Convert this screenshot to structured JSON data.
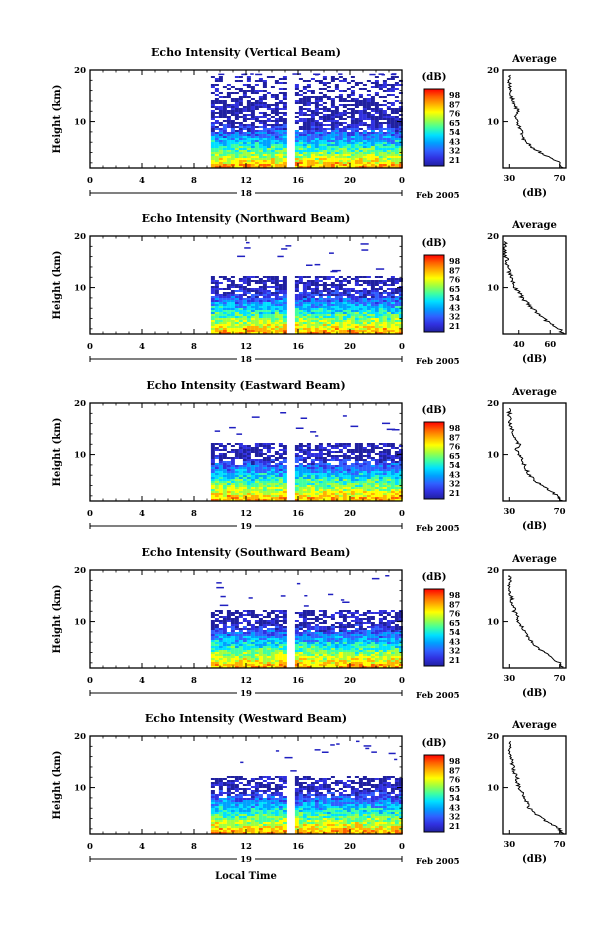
{
  "figure": {
    "xlabel": "Local Time",
    "colorbar_unit": "(dB)",
    "colorbar_levels": [
      "98",
      "87",
      "76",
      "65",
      "54",
      "43",
      "32",
      "21"
    ],
    "colorbar_colors": [
      "#ff0000",
      "#ff6000",
      "#ffb000",
      "#ffff00",
      "#a0ff40",
      "#40ffa0",
      "#00e0ff",
      "#00a0ff",
      "#3060ff",
      "#3030e0",
      "#2020a0"
    ],
    "avg_title": "Average",
    "avg_xlabel": "(dB)",
    "date_suffix": "Feb 2005"
  },
  "chart_data": [
    {
      "type": "heatmap",
      "title": "Echo Intensity (Vertical Beam)",
      "ylabel": "Height (km)",
      "x_ticks": [
        "0",
        "4",
        "8",
        "12",
        "16",
        "20",
        "0"
      ],
      "xlim": [
        0,
        24
      ],
      "y_ticks": [
        "20",
        "10"
      ],
      "ylim": [
        1,
        20
      ],
      "date_day": "18",
      "data_start_hour": 9.3,
      "gap_hour": 15.3,
      "average_profile": {
        "x_ticks": [
          "30",
          "70"
        ],
        "xlim": [
          25,
          75
        ],
        "heights": [
          1,
          2,
          3,
          4,
          5,
          6,
          7,
          8,
          9,
          10,
          11,
          12,
          13,
          14,
          15,
          16,
          17,
          18,
          19
        ],
        "values": [
          72,
          70,
          62,
          55,
          48,
          44,
          40,
          40,
          38,
          36,
          35,
          38,
          34,
          33,
          31,
          32,
          30,
          30,
          31
        ]
      }
    },
    {
      "type": "heatmap",
      "title": "Echo Intensity (Northward Beam)",
      "ylabel": "Height (km)",
      "x_ticks": [
        "0",
        "4",
        "8",
        "12",
        "16",
        "20",
        "0"
      ],
      "xlim": [
        0,
        24
      ],
      "y_ticks": [
        "20",
        "10"
      ],
      "ylim": [
        1,
        20
      ],
      "date_day": "18",
      "data_start_hour": 9.3,
      "gap_hour": 15.3,
      "average_profile": {
        "x_ticks": [
          "40",
          "60"
        ],
        "xlim": [
          30,
          70
        ],
        "heights": [
          1,
          2,
          3,
          4,
          5,
          6,
          7,
          8,
          9,
          10,
          11,
          12,
          13,
          14,
          15,
          16,
          17,
          18,
          19
        ],
        "values": [
          68,
          66,
          60,
          56,
          52,
          48,
          46,
          42,
          40,
          38,
          37,
          35,
          34,
          33,
          32,
          32,
          31,
          31,
          31
        ]
      }
    },
    {
      "type": "heatmap",
      "title": "Echo Intensity (Eastward Beam)",
      "ylabel": "Height (km)",
      "x_ticks": [
        "0",
        "4",
        "8",
        "12",
        "16",
        "20",
        "0"
      ],
      "xlim": [
        0,
        24
      ],
      "y_ticks": [
        "20",
        "10"
      ],
      "ylim": [
        1,
        20
      ],
      "date_day": "19",
      "data_start_hour": 9.3,
      "gap_hour": 15.3,
      "average_profile": {
        "x_ticks": [
          "30",
          "70"
        ],
        "xlim": [
          25,
          75
        ],
        "heights": [
          1,
          2,
          3,
          4,
          5,
          6,
          7,
          8,
          9,
          10,
          11,
          12,
          13,
          14,
          15,
          16,
          17,
          18,
          19
        ],
        "values": [
          72,
          68,
          62,
          56,
          50,
          46,
          44,
          42,
          40,
          38,
          36,
          38,
          34,
          33,
          32,
          31,
          30,
          30,
          30
        ]
      }
    },
    {
      "type": "heatmap",
      "title": "Echo Intensity (Southward Beam)",
      "ylabel": "Height (km)",
      "x_ticks": [
        "0",
        "4",
        "8",
        "12",
        "16",
        "20",
        "0"
      ],
      "xlim": [
        0,
        24
      ],
      "y_ticks": [
        "20",
        "10"
      ],
      "ylim": [
        1,
        20
      ],
      "date_day": "19",
      "data_start_hour": 9.3,
      "gap_hour": 15.3,
      "average_profile": {
        "x_ticks": [
          "30",
          "70"
        ],
        "xlim": [
          25,
          75
        ],
        "heights": [
          1,
          2,
          3,
          4,
          5,
          6,
          7,
          8,
          9,
          10,
          11,
          12,
          13,
          14,
          15,
          16,
          17,
          18,
          19
        ],
        "values": [
          72,
          70,
          64,
          58,
          52,
          48,
          44,
          42,
          40,
          37,
          36,
          34,
          33,
          32,
          31,
          30,
          30,
          30,
          30
        ]
      }
    },
    {
      "type": "heatmap",
      "title": "Echo Intensity (Westward Beam)",
      "ylabel": "Height (km)",
      "x_ticks": [
        "0",
        "4",
        "8",
        "12",
        "16",
        "20",
        "0"
      ],
      "xlim": [
        0,
        24
      ],
      "y_ticks": [
        "20",
        "10"
      ],
      "ylim": [
        1,
        20
      ],
      "date_day": "19",
      "data_start_hour": 9.3,
      "gap_hour": 15.3,
      "average_profile": {
        "x_ticks": [
          "30",
          "70"
        ],
        "xlim": [
          25,
          75
        ],
        "heights": [
          1,
          2,
          3,
          4,
          5,
          6,
          7,
          8,
          9,
          10,
          11,
          12,
          13,
          14,
          15,
          16,
          17,
          18,
          19
        ],
        "values": [
          72,
          70,
          62,
          56,
          50,
          46,
          44,
          42,
          40,
          38,
          36,
          36,
          34,
          33,
          32,
          31,
          30,
          30,
          31
        ]
      }
    }
  ]
}
